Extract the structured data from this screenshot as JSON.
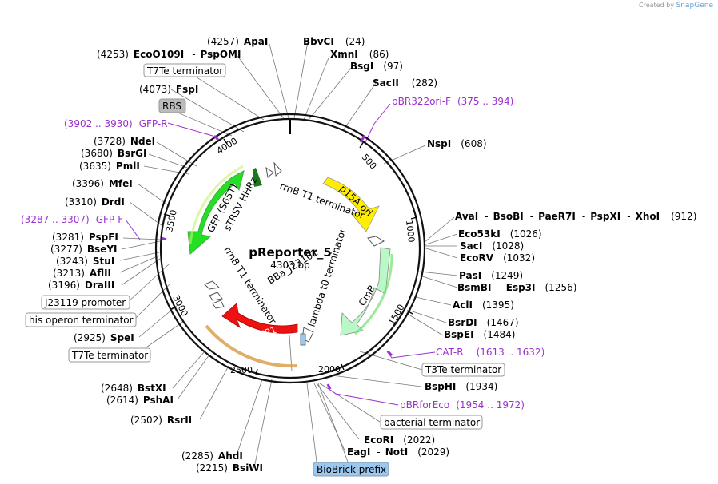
{
  "credit": {
    "prefix": "Created by",
    "brand": "SnapGene"
  },
  "plasmid": {
    "name": "pReporter_5",
    "size": "4303 bp"
  },
  "ruler": [
    "500",
    "1000",
    "1500",
    "2000",
    "2500",
    "3000",
    "3500",
    "4000"
  ],
  "colors": {
    "primer": "#9b30d0",
    "gfp": "#22e022",
    "p15a": "#ffee00",
    "cmr": "#bbf8c8",
    "mrfp": "#ee1111",
    "hhrz": "#1a7a1a"
  },
  "features": {
    "gfp": "GFP (S65T)",
    "p15a": "p15A ori",
    "cmr": "CmR",
    "mrfp": "mRFP1",
    "rrnb_top": "rrnB T1 terminator",
    "rrnb_left": "rrnB T1 terminator",
    "lambda": "lambda t0 terminator",
    "bba": "BBa_J23101",
    "strsv": "sTRSV HHRz"
  },
  "boxed": {
    "t7te_top": "T7Te terminator",
    "rbs": "RBS",
    "j23119": "J23119 promoter",
    "his": "his operon terminator",
    "t7te_bot": "T7Te terminator",
    "t3te": "T3Te terminator",
    "bact": "bacterial terminator",
    "biobrick": "BioBrick prefix"
  },
  "primers": {
    "pbr322": {
      "name": "pBR322ori-F",
      "range": "(375 .. 394)"
    },
    "gfpr": {
      "name": "GFP-R",
      "range": "(3902 .. 3930)"
    },
    "gfpf": {
      "name": "GFP-F",
      "range": "(3287 .. 3307)"
    },
    "catr": {
      "name": "CAT-R",
      "range": "(1613 .. 1632)"
    },
    "pbrfor": {
      "name": "pBRforEco",
      "range": "(1954 .. 1972)"
    }
  },
  "sites": {
    "apai": {
      "pos": "(4257)",
      "name": "ApaI"
    },
    "eco": {
      "pos": "(4253)",
      "name": "EcoO109I",
      "sep": "-",
      "name2": "PspOMI"
    },
    "bbvci": {
      "name": "BbvCI",
      "pos": "(24)"
    },
    "xmni": {
      "name": "XmnI",
      "pos": "(86)"
    },
    "bsgi": {
      "name": "BsgI",
      "pos": "(97)"
    },
    "sacii": {
      "name": "SacII",
      "pos": "(282)"
    },
    "fspi": {
      "pos": "(4073)",
      "name": "FspI"
    },
    "nspi": {
      "name": "NspI",
      "pos": "(608)"
    },
    "ndei": {
      "pos": "(3728)",
      "name": "NdeI"
    },
    "bsrgi": {
      "pos": "(3680)",
      "name": "BsrGI"
    },
    "pmli": {
      "pos": "(3635)",
      "name": "PmlI"
    },
    "mfei": {
      "pos": "(3396)",
      "name": "MfeI"
    },
    "drdi": {
      "pos": "(3310)",
      "name": "DrdI"
    },
    "pspfi": {
      "pos": "(3281)",
      "name": "PspFI"
    },
    "bseyi": {
      "pos": "(3277)",
      "name": "BseYI"
    },
    "stui": {
      "pos": "(3243)",
      "name": "StuI"
    },
    "aflii": {
      "pos": "(3213)",
      "name": "AflII"
    },
    "draiii": {
      "pos": "(3196)",
      "name": "DraIII"
    },
    "spei": {
      "pos": "(2925)",
      "name": "SpeI"
    },
    "bstxi": {
      "pos": "(2648)",
      "name": "BstXI"
    },
    "pshai": {
      "pos": "(2614)",
      "name": "PshAI"
    },
    "rsrii": {
      "pos": "(2502)",
      "name": "RsrII"
    },
    "ahdi": {
      "pos": "(2285)",
      "name": "AhdI"
    },
    "bsiwi": {
      "pos": "(2215)",
      "name": "BsiWI"
    },
    "avai": {
      "name": "AvaI",
      "s1": "-",
      "name2": "BsoBI",
      "s2": "-",
      "name3": "PaeR7I",
      "s3": "-",
      "name4": "PspXI",
      "s4": "-",
      "name5": "XhoI",
      "pos": "(912)"
    },
    "eco53ki": {
      "name": "Eco53kI",
      "pos": "(1026)"
    },
    "saci": {
      "name": "SacI",
      "pos": "(1028)"
    },
    "ecorv": {
      "name": "EcoRV",
      "pos": "(1032)"
    },
    "pasi": {
      "name": "PasI",
      "pos": "(1249)"
    },
    "bsmbi": {
      "name": "BsmBI",
      "sep": "-",
      "name2": "Esp3I",
      "pos": "(1256)"
    },
    "acli": {
      "name": "AclI",
      "pos": "(1395)"
    },
    "bsrdi": {
      "name": "BsrDI",
      "pos": "(1467)"
    },
    "bspei": {
      "name": "BspEI",
      "pos": "(1484)"
    },
    "bsphi": {
      "name": "BspHI",
      "pos": "(1934)"
    },
    "ecori": {
      "name": "EcoRI",
      "pos": "(2022)"
    },
    "eagi": {
      "name": "EagI",
      "sep": "-",
      "name2": "NotI",
      "pos": "(2029)"
    }
  }
}
